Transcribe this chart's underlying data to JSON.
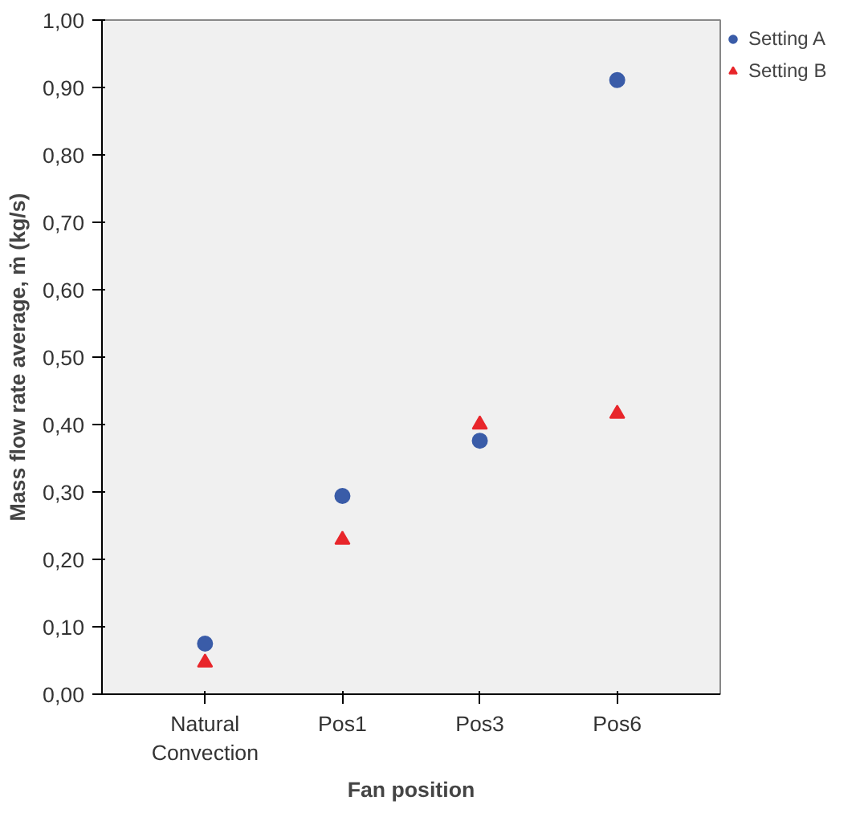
{
  "chart_data": {
    "type": "scatter",
    "xlabel": "Fan position",
    "ylabel": "Mass flow rate average, ṁ (kg/s)",
    "categories": [
      "Natural Convection",
      "Pos1",
      "Pos3",
      "Pos6"
    ],
    "series": [
      {
        "name": "Setting A",
        "color": "#3a5ca8",
        "marker": "circle",
        "values": [
          0.075,
          0.294,
          0.376,
          0.911
        ]
      },
      {
        "name": "Setting B",
        "color": "#e8262b",
        "marker": "triangle",
        "values": [
          0.047,
          0.229,
          0.4,
          0.416
        ]
      }
    ],
    "ylim": [
      0,
      1
    ],
    "yticks": [
      {
        "value": 0,
        "label": "0,00"
      },
      {
        "value": 0.1,
        "label": "0,10"
      },
      {
        "value": 0.2,
        "label": "0,20"
      },
      {
        "value": 0.3,
        "label": "0,30"
      },
      {
        "value": 0.4,
        "label": "0,40"
      },
      {
        "value": 0.5,
        "label": "0,50"
      },
      {
        "value": 0.6,
        "label": "0,60"
      },
      {
        "value": 0.7,
        "label": "0,70"
      },
      {
        "value": 0.8,
        "label": "0,80"
      },
      {
        "value": 0.9,
        "label": "0,90"
      },
      {
        "value": 1,
        "label": "1,00"
      }
    ],
    "grid": false,
    "legend": "top right"
  }
}
